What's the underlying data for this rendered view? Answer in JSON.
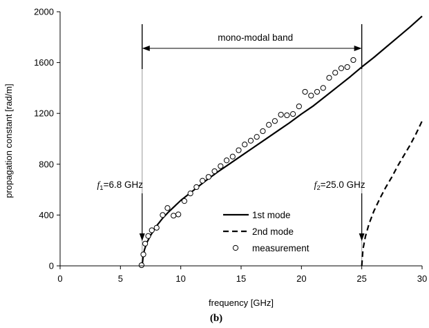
{
  "chart_data": {
    "type": "line",
    "xlabel": "frequency [GHz]",
    "ylabel": "propagation constant [rad/m]",
    "xlim": [
      0,
      30
    ],
    "ylim": [
      0,
      2000
    ],
    "xticks": [
      "0",
      "5",
      "10",
      "15",
      "20",
      "25",
      "30"
    ],
    "yticks": [
      "0",
      "400",
      "800",
      "1200",
      "1600",
      "2000"
    ],
    "grid": false,
    "legend_position": "bottom-right",
    "series": [
      {
        "name": "1st mode",
        "style": "solid",
        "color": "#000000",
        "x": [
          6.8,
          6.9,
          7.0,
          7.2,
          7.5,
          8.0,
          8.5,
          9.0,
          9.5,
          10.0,
          11.0,
          12.0,
          13.0,
          14.0,
          15.0,
          16.0,
          17.0,
          18.0,
          19.0,
          20.0,
          21.0,
          22.0,
          23.0,
          24.0,
          25.0,
          26.0,
          27.0,
          28.0,
          29.0,
          30.0
        ],
        "y": [
          0,
          90,
          130,
          185,
          240,
          315,
          375,
          425,
          470,
          515,
          590,
          665,
          735,
          800,
          865,
          930,
          995,
          1060,
          1125,
          1195,
          1260,
          1335,
          1410,
          1485,
          1565,
          1640,
          1720,
          1800,
          1880,
          1965
        ]
      },
      {
        "name": "2nd mode",
        "style": "dashed",
        "color": "#000000",
        "x": [
          25.0,
          25.1,
          25.3,
          25.6,
          26.0,
          26.5,
          27.0,
          27.5,
          28.0,
          28.5,
          29.0,
          29.5,
          30.0
        ],
        "y": [
          0,
          130,
          230,
          330,
          430,
          530,
          620,
          700,
          790,
          870,
          950,
          1040,
          1140
        ]
      },
      {
        "name": "measurement",
        "style": "markers",
        "marker": "open-circle",
        "x": [
          6.75,
          6.9,
          7.05,
          7.3,
          7.6,
          8.0,
          8.5,
          8.9,
          9.4,
          9.8,
          10.3,
          10.8,
          11.3,
          11.8,
          12.3,
          12.8,
          13.3,
          13.8,
          14.3,
          14.8,
          15.3,
          15.8,
          16.3,
          16.8,
          17.3,
          17.8,
          18.3,
          18.8,
          19.3,
          19.8,
          20.3,
          20.8,
          21.3,
          21.8,
          22.3,
          22.8,
          23.3,
          23.8,
          24.3
        ],
        "y": [
          5,
          90,
          175,
          235,
          280,
          300,
          400,
          455,
          395,
          405,
          510,
          570,
          620,
          670,
          700,
          745,
          785,
          830,
          860,
          910,
          955,
          985,
          1015,
          1060,
          1110,
          1140,
          1190,
          1185,
          1195,
          1255,
          1370,
          1340,
          1370,
          1400,
          1480,
          1520,
          1555,
          1565,
          1620
        ]
      }
    ],
    "annotations": {
      "band_label": "mono-modal band",
      "f1_var": "f",
      "f1_sub": "1",
      "f1_value": "=6.8 GHz",
      "f1_x": 6.8,
      "f2_var": "f",
      "f2_sub": "2",
      "f2_value": "=25.0 GHz",
      "f2_x": 25.0
    },
    "panel_label": "(b)"
  }
}
